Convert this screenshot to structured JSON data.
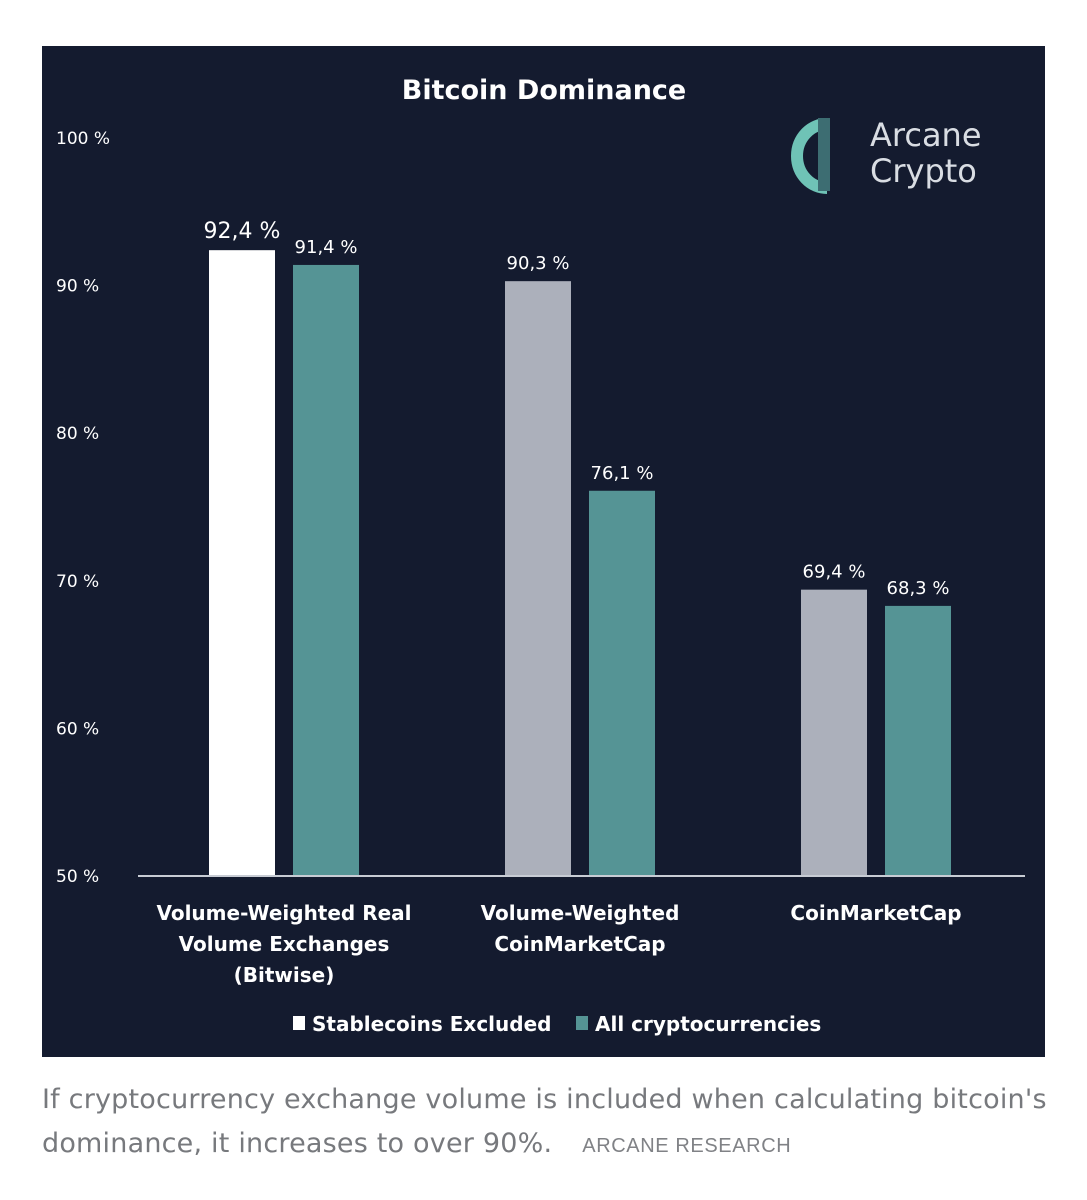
{
  "logo": {
    "line1": "Arcane",
    "line2": "Crypto",
    "icon": "arcane-a-logo-icon",
    "color_primary": "#6fc3b6",
    "color_secondary": "#3d6d72"
  },
  "caption": {
    "text": "If cryptocurrency exchange volume is included when calculating bitcoin's dominance, it increases to over 90%.",
    "credit": "ARCANE RESEARCH"
  },
  "chart_data": {
    "type": "bar",
    "title": "Bitcoin Dominance",
    "xlabel": "",
    "ylabel": "",
    "ylim": [
      50,
      100
    ],
    "yticks": [
      50,
      60,
      70,
      80,
      90,
      100
    ],
    "ytick_labels": [
      "50 %",
      "60 %",
      "70 %",
      "80 %",
      "90 %",
      "100 %"
    ],
    "grid": false,
    "legend_position": "bottom-center",
    "categories": [
      [
        "Volume-Weighted Real",
        "Volume Exchanges",
        "(Bitwise)"
      ],
      [
        "Volume-Weighted",
        "CoinMarketCap"
      ],
      [
        "CoinMarketCap"
      ]
    ],
    "series": [
      {
        "name": "Stablecoins Excluded",
        "values": [
          92.4,
          90.3,
          69.4
        ],
        "labels": [
          "92,4 %",
          "90,3 %",
          "69,4 %"
        ],
        "colors": [
          "#ffffff",
          "#acb0bb",
          "#acb0bb"
        ],
        "legend_color": "#ffffff"
      },
      {
        "name": "All cryptocurrencies",
        "values": [
          91.4,
          76.1,
          68.3
        ],
        "labels": [
          "91,4 %",
          "76,1 %",
          "68,3 %"
        ],
        "colors": [
          "#559495",
          "#559495",
          "#559495"
        ],
        "legend_color": "#559495"
      }
    ],
    "colors": {
      "background": "#141b2f",
      "text": "#ffffff",
      "axis": "#c8ccd4"
    }
  }
}
